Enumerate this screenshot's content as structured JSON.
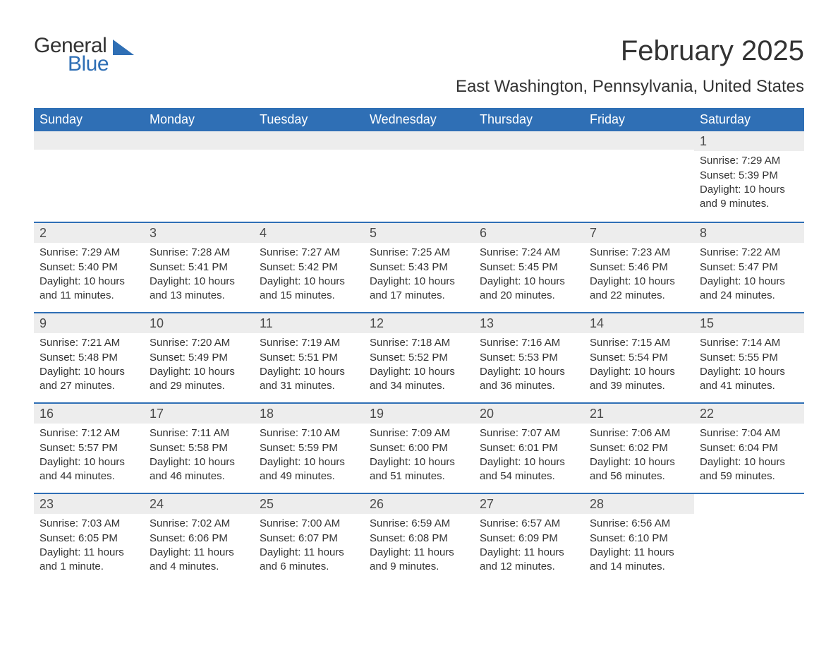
{
  "logo": {
    "word1": "General",
    "word2": "Blue"
  },
  "title": "February 2025",
  "location": "East Washington, Pennsylvania, United States",
  "weekdays": [
    "Sunday",
    "Monday",
    "Tuesday",
    "Wednesday",
    "Thursday",
    "Friday",
    "Saturday"
  ],
  "colors": {
    "header_bg": "#2f6fb5",
    "header_text": "#ffffff",
    "day_bar_bg": "#ededed",
    "text": "#333333",
    "divider": "#2f6fb5",
    "logo_blue": "#2f6fb5"
  },
  "weeks": [
    [
      {
        "empty": true
      },
      {
        "empty": true
      },
      {
        "empty": true
      },
      {
        "empty": true
      },
      {
        "empty": true
      },
      {
        "empty": true
      },
      {
        "day": "1",
        "sunrise": "Sunrise: 7:29 AM",
        "sunset": "Sunset: 5:39 PM",
        "daylight": "Daylight: 10 hours and 9 minutes."
      }
    ],
    [
      {
        "day": "2",
        "sunrise": "Sunrise: 7:29 AM",
        "sunset": "Sunset: 5:40 PM",
        "daylight": "Daylight: 10 hours and 11 minutes."
      },
      {
        "day": "3",
        "sunrise": "Sunrise: 7:28 AM",
        "sunset": "Sunset: 5:41 PM",
        "daylight": "Daylight: 10 hours and 13 minutes."
      },
      {
        "day": "4",
        "sunrise": "Sunrise: 7:27 AM",
        "sunset": "Sunset: 5:42 PM",
        "daylight": "Daylight: 10 hours and 15 minutes."
      },
      {
        "day": "5",
        "sunrise": "Sunrise: 7:25 AM",
        "sunset": "Sunset: 5:43 PM",
        "daylight": "Daylight: 10 hours and 17 minutes."
      },
      {
        "day": "6",
        "sunrise": "Sunrise: 7:24 AM",
        "sunset": "Sunset: 5:45 PM",
        "daylight": "Daylight: 10 hours and 20 minutes."
      },
      {
        "day": "7",
        "sunrise": "Sunrise: 7:23 AM",
        "sunset": "Sunset: 5:46 PM",
        "daylight": "Daylight: 10 hours and 22 minutes."
      },
      {
        "day": "8",
        "sunrise": "Sunrise: 7:22 AM",
        "sunset": "Sunset: 5:47 PM",
        "daylight": "Daylight: 10 hours and 24 minutes."
      }
    ],
    [
      {
        "day": "9",
        "sunrise": "Sunrise: 7:21 AM",
        "sunset": "Sunset: 5:48 PM",
        "daylight": "Daylight: 10 hours and 27 minutes."
      },
      {
        "day": "10",
        "sunrise": "Sunrise: 7:20 AM",
        "sunset": "Sunset: 5:49 PM",
        "daylight": "Daylight: 10 hours and 29 minutes."
      },
      {
        "day": "11",
        "sunrise": "Sunrise: 7:19 AM",
        "sunset": "Sunset: 5:51 PM",
        "daylight": "Daylight: 10 hours and 31 minutes."
      },
      {
        "day": "12",
        "sunrise": "Sunrise: 7:18 AM",
        "sunset": "Sunset: 5:52 PM",
        "daylight": "Daylight: 10 hours and 34 minutes."
      },
      {
        "day": "13",
        "sunrise": "Sunrise: 7:16 AM",
        "sunset": "Sunset: 5:53 PM",
        "daylight": "Daylight: 10 hours and 36 minutes."
      },
      {
        "day": "14",
        "sunrise": "Sunrise: 7:15 AM",
        "sunset": "Sunset: 5:54 PM",
        "daylight": "Daylight: 10 hours and 39 minutes."
      },
      {
        "day": "15",
        "sunrise": "Sunrise: 7:14 AM",
        "sunset": "Sunset: 5:55 PM",
        "daylight": "Daylight: 10 hours and 41 minutes."
      }
    ],
    [
      {
        "day": "16",
        "sunrise": "Sunrise: 7:12 AM",
        "sunset": "Sunset: 5:57 PM",
        "daylight": "Daylight: 10 hours and 44 minutes."
      },
      {
        "day": "17",
        "sunrise": "Sunrise: 7:11 AM",
        "sunset": "Sunset: 5:58 PM",
        "daylight": "Daylight: 10 hours and 46 minutes."
      },
      {
        "day": "18",
        "sunrise": "Sunrise: 7:10 AM",
        "sunset": "Sunset: 5:59 PM",
        "daylight": "Daylight: 10 hours and 49 minutes."
      },
      {
        "day": "19",
        "sunrise": "Sunrise: 7:09 AM",
        "sunset": "Sunset: 6:00 PM",
        "daylight": "Daylight: 10 hours and 51 minutes."
      },
      {
        "day": "20",
        "sunrise": "Sunrise: 7:07 AM",
        "sunset": "Sunset: 6:01 PM",
        "daylight": "Daylight: 10 hours and 54 minutes."
      },
      {
        "day": "21",
        "sunrise": "Sunrise: 7:06 AM",
        "sunset": "Sunset: 6:02 PM",
        "daylight": "Daylight: 10 hours and 56 minutes."
      },
      {
        "day": "22",
        "sunrise": "Sunrise: 7:04 AM",
        "sunset": "Sunset: 6:04 PM",
        "daylight": "Daylight: 10 hours and 59 minutes."
      }
    ],
    [
      {
        "day": "23",
        "sunrise": "Sunrise: 7:03 AM",
        "sunset": "Sunset: 6:05 PM",
        "daylight": "Daylight: 11 hours and 1 minute."
      },
      {
        "day": "24",
        "sunrise": "Sunrise: 7:02 AM",
        "sunset": "Sunset: 6:06 PM",
        "daylight": "Daylight: 11 hours and 4 minutes."
      },
      {
        "day": "25",
        "sunrise": "Sunrise: 7:00 AM",
        "sunset": "Sunset: 6:07 PM",
        "daylight": "Daylight: 11 hours and 6 minutes."
      },
      {
        "day": "26",
        "sunrise": "Sunrise: 6:59 AM",
        "sunset": "Sunset: 6:08 PM",
        "daylight": "Daylight: 11 hours and 9 minutes."
      },
      {
        "day": "27",
        "sunrise": "Sunrise: 6:57 AM",
        "sunset": "Sunset: 6:09 PM",
        "daylight": "Daylight: 11 hours and 12 minutes."
      },
      {
        "day": "28",
        "sunrise": "Sunrise: 6:56 AM",
        "sunset": "Sunset: 6:10 PM",
        "daylight": "Daylight: 11 hours and 14 minutes."
      },
      {
        "empty": true,
        "no_bar": true
      }
    ]
  ]
}
